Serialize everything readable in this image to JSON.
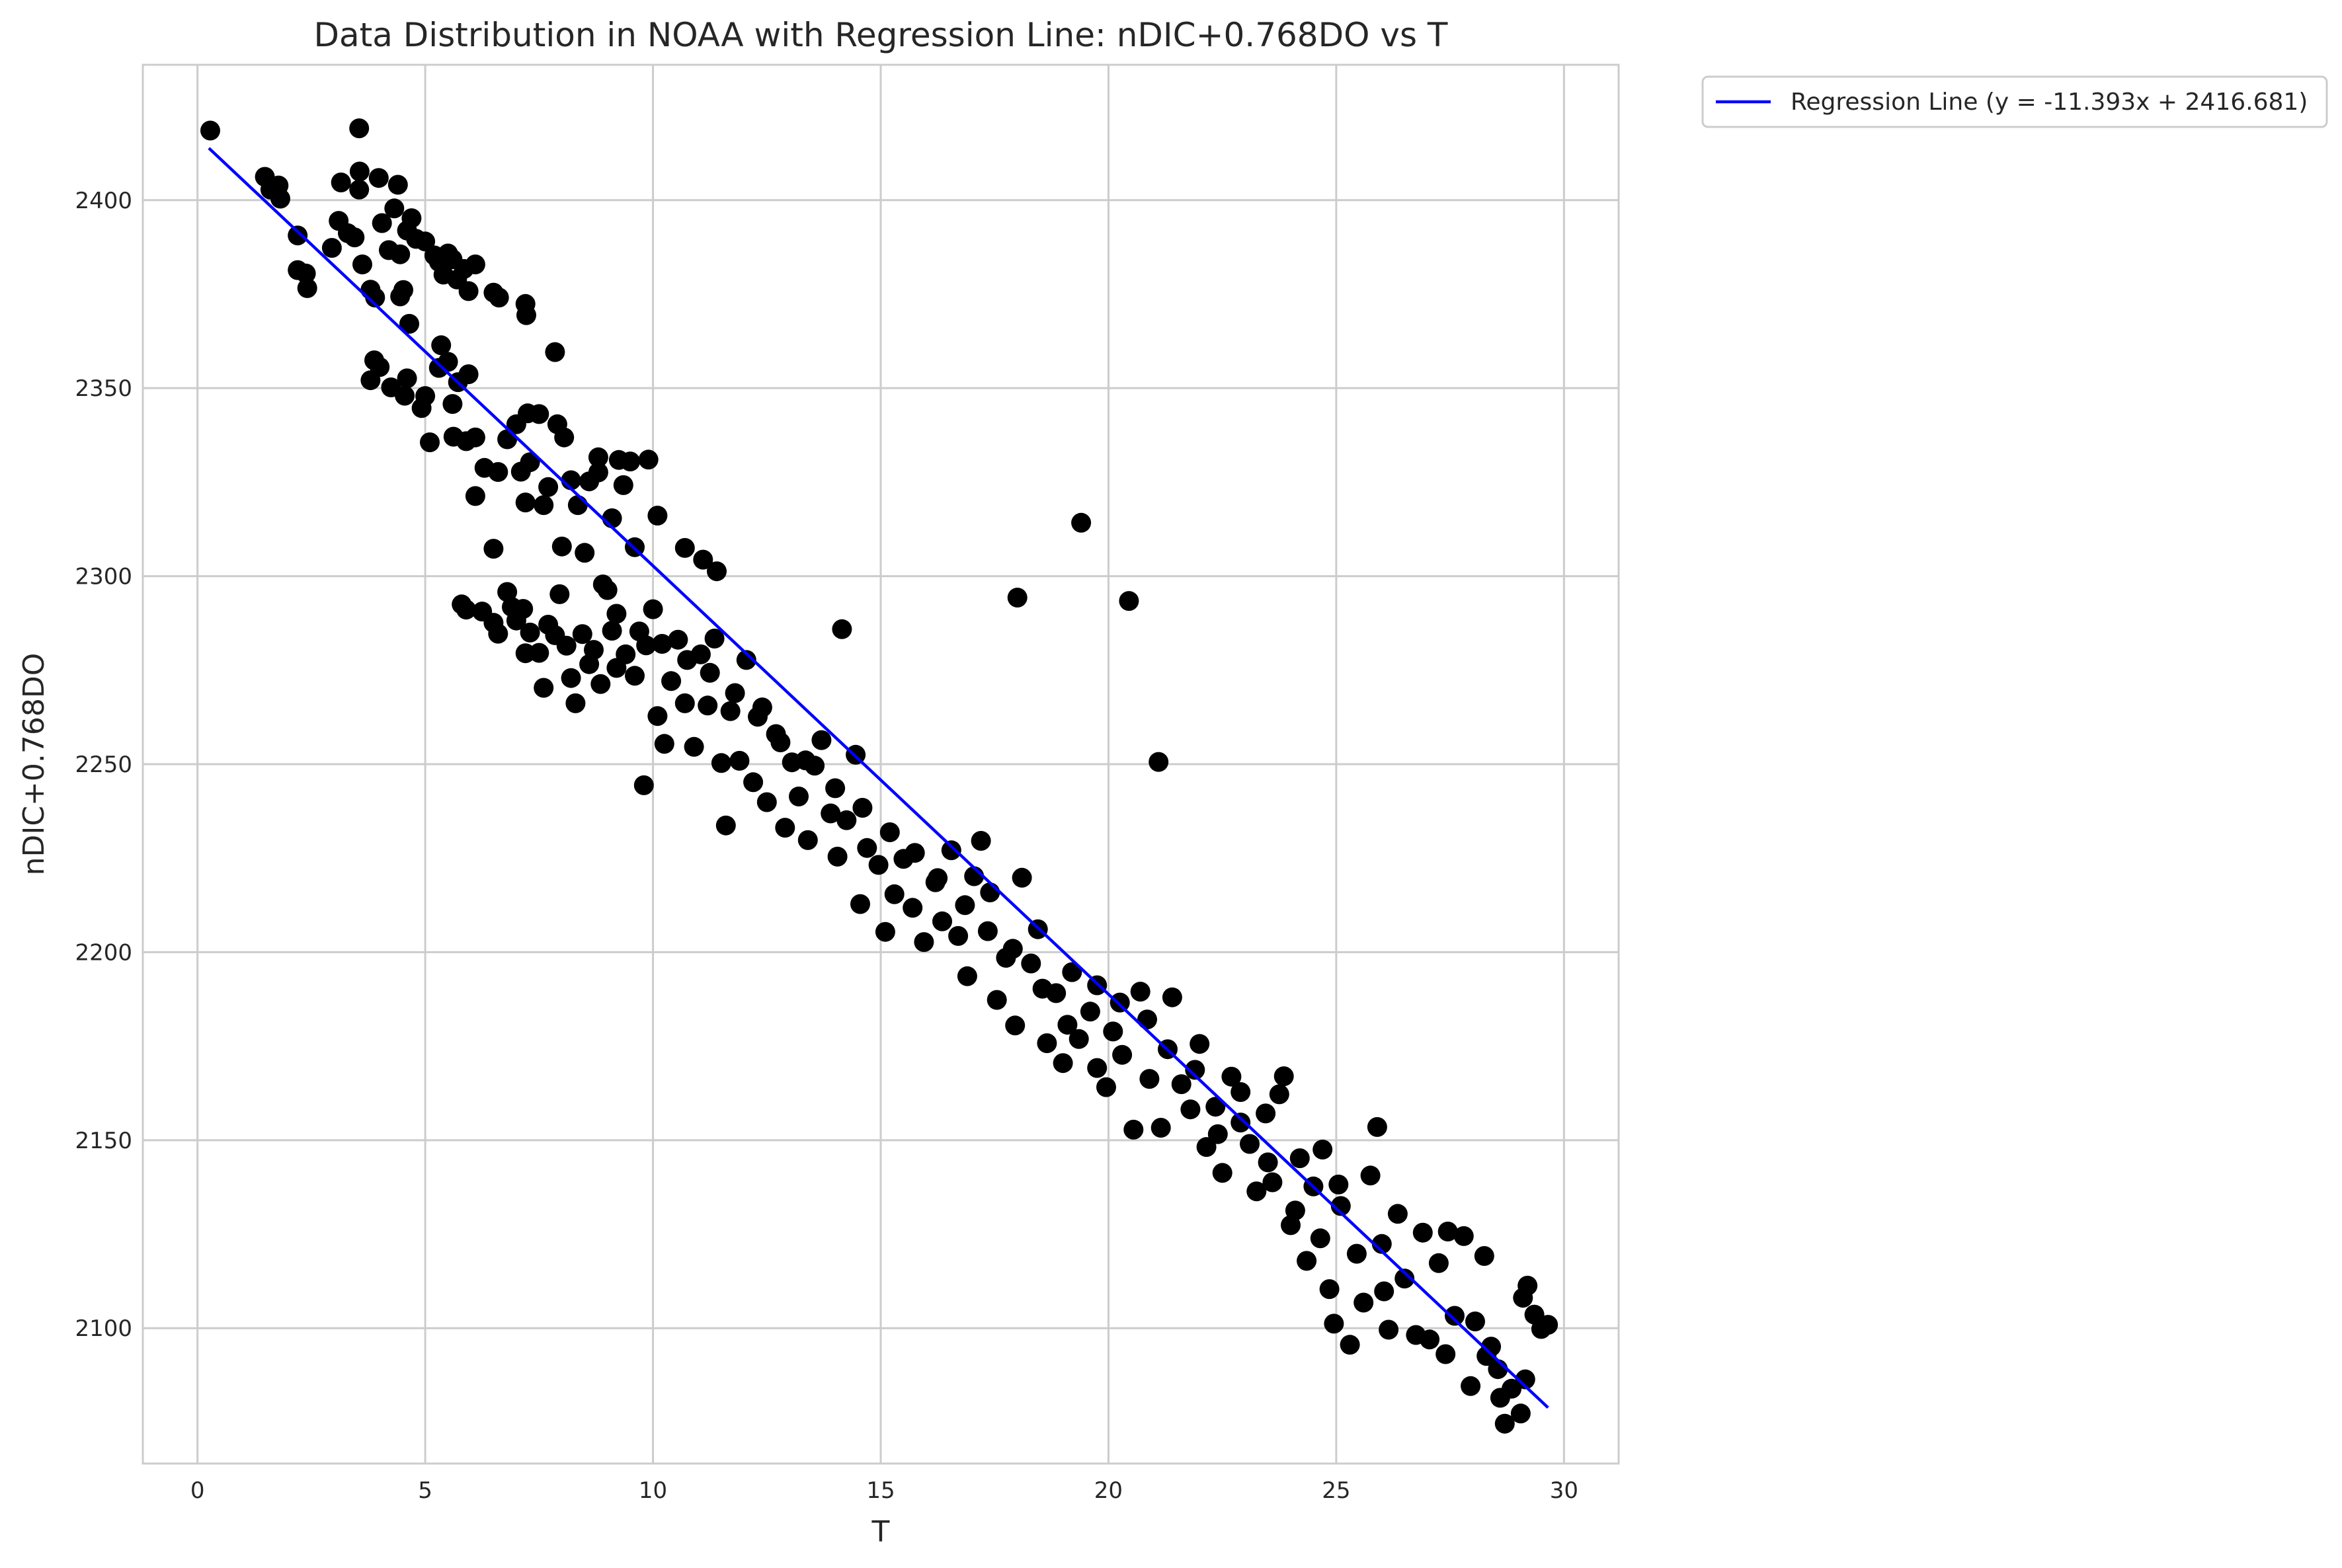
{
  "chart_data": {
    "type": "scatter",
    "title": "Data Distribution in NOAA with Regression Line: nDIC+0.768DO vs T",
    "xlabel": "T",
    "ylabel": "nDIC+0.768DO",
    "xlim": [
      -1.2,
      31.2
    ],
    "ylim": [
      2064,
      2436
    ],
    "xticks": [
      0,
      5,
      10,
      15,
      20,
      25,
      30
    ],
    "yticks": [
      2100,
      2150,
      2200,
      2250,
      2300,
      2350,
      2400
    ],
    "grid": true,
    "legend_placement": "outside top-right",
    "colors": {
      "points": "#000000",
      "regression": "#0000ff",
      "grid": "#cccccc"
    },
    "regression": {
      "label": "Regression Line (y = -11.393x + 2416.681)",
      "slope": -11.393,
      "intercept": 2416.681,
      "x_range": [
        0.25,
        29.65
      ]
    },
    "series": [
      {
        "points": [
          [
            0.28,
            2418.5
          ],
          [
            1.48,
            2406.2
          ],
          [
            1.6,
            2402.8
          ],
          [
            1.78,
            2403.9
          ],
          [
            1.82,
            2400.4
          ],
          [
            2.2,
            2390.6
          ],
          [
            2.2,
            2381.4
          ],
          [
            2.38,
            2380.5
          ],
          [
            2.41,
            2376.6
          ],
          [
            2.95,
            2387.3
          ],
          [
            3.1,
            2394.5
          ],
          [
            3.15,
            2404.7
          ],
          [
            3.3,
            2391.2
          ],
          [
            3.45,
            2390.1
          ],
          [
            3.55,
            2419.1
          ],
          [
            3.56,
            2407.6
          ],
          [
            3.55,
            2402.8
          ],
          [
            3.62,
            2382.9
          ],
          [
            3.8,
            2376.2
          ],
          [
            3.9,
            2374.1
          ],
          [
            3.98,
            2405.9
          ],
          [
            4.05,
            2393.9
          ],
          [
            4.2,
            2386.7
          ],
          [
            4.32,
            2397.8
          ],
          [
            4.4,
            2404.1
          ],
          [
            4.45,
            2385.6
          ],
          [
            4.52,
            2376.1
          ],
          [
            4.45,
            2374.4
          ],
          [
            4.6,
            2391.9
          ],
          [
            4.7,
            2395.2
          ],
          [
            4.8,
            2389.7
          ],
          [
            5.0,
            2389.0
          ],
          [
            5.2,
            2385.3
          ],
          [
            5.3,
            2383.6
          ],
          [
            5.4,
            2380.2
          ],
          [
            5.5,
            2385.8
          ],
          [
            5.6,
            2384.3
          ],
          [
            5.7,
            2378.9
          ],
          [
            5.85,
            2381.7
          ],
          [
            5.95,
            2375.8
          ],
          [
            6.1,
            2382.9
          ],
          [
            6.5,
            2375.4
          ],
          [
            6.62,
            2374.1
          ],
          [
            7.2,
            2372.4
          ],
          [
            7.22,
            2369.4
          ],
          [
            4.65,
            2367.1
          ],
          [
            3.88,
            2357.4
          ],
          [
            4.0,
            2355.6
          ],
          [
            3.8,
            2352.1
          ],
          [
            4.25,
            2350.2
          ],
          [
            4.6,
            2352.6
          ],
          [
            4.55,
            2348.0
          ],
          [
            4.92,
            2344.7
          ],
          [
            5.0,
            2347.9
          ],
          [
            5.1,
            2335.6
          ],
          [
            5.3,
            2355.4
          ],
          [
            5.35,
            2361.4
          ],
          [
            5.5,
            2357.0
          ],
          [
            5.6,
            2345.8
          ],
          [
            5.62,
            2337.1
          ],
          [
            5.72,
            2351.6
          ],
          [
            5.95,
            2353.7
          ],
          [
            5.9,
            2335.9
          ],
          [
            6.1,
            2336.9
          ],
          [
            6.3,
            2328.8
          ],
          [
            6.1,
            2321.3
          ],
          [
            6.6,
            2327.7
          ],
          [
            6.8,
            2336.4
          ],
          [
            7.0,
            2340.4
          ],
          [
            7.1,
            2327.8
          ],
          [
            7.25,
            2343.3
          ],
          [
            7.5,
            2343.1
          ],
          [
            7.3,
            2330.3
          ],
          [
            7.7,
            2323.7
          ],
          [
            7.9,
            2340.4
          ],
          [
            7.85,
            2359.6
          ],
          [
            8.05,
            2336.9
          ],
          [
            8.2,
            2325.5
          ],
          [
            8.35,
            2318.9
          ],
          [
            8.6,
            2325.2
          ],
          [
            8.8,
            2331.6
          ],
          [
            8.8,
            2327.6
          ],
          [
            9.1,
            2315.4
          ],
          [
            9.25,
            2330.9
          ],
          [
            9.35,
            2324.2
          ],
          [
            9.5,
            2330.5
          ],
          [
            9.6,
            2307.7
          ],
          [
            9.9,
            2331.0
          ],
          [
            10.1,
            2316.1
          ],
          [
            10.7,
            2307.5
          ],
          [
            11.1,
            2304.4
          ],
          [
            11.4,
            2301.3
          ],
          [
            7.2,
            2319.6
          ],
          [
            7.6,
            2318.9
          ],
          [
            8.0,
            2307.9
          ],
          [
            8.5,
            2306.2
          ],
          [
            6.5,
            2307.3
          ],
          [
            8.9,
            2297.8
          ],
          [
            9.0,
            2296.3
          ],
          [
            5.8,
            2292.5
          ],
          [
            5.9,
            2291.1
          ],
          [
            6.25,
            2290.6
          ],
          [
            6.5,
            2287.6
          ],
          [
            6.6,
            2284.7
          ],
          [
            6.8,
            2295.8
          ],
          [
            7.0,
            2288.2
          ],
          [
            7.15,
            2291.3
          ],
          [
            7.3,
            2285.0
          ],
          [
            7.5,
            2279.6
          ],
          [
            7.6,
            2270.3
          ],
          [
            7.85,
            2284.3
          ],
          [
            7.95,
            2295.2
          ],
          [
            8.1,
            2281.5
          ],
          [
            8.3,
            2266.2
          ],
          [
            8.45,
            2284.6
          ],
          [
            8.6,
            2276.6
          ],
          [
            8.85,
            2271.3
          ],
          [
            9.1,
            2285.5
          ],
          [
            9.2,
            2290.0
          ],
          [
            9.4,
            2279.2
          ],
          [
            9.6,
            2273.5
          ],
          [
            9.8,
            2244.4
          ],
          [
            9.85,
            2281.6
          ],
          [
            10.0,
            2291.2
          ],
          [
            10.1,
            2262.8
          ],
          [
            10.25,
            2255.4
          ],
          [
            10.4,
            2272.1
          ],
          [
            10.55,
            2283.1
          ],
          [
            10.7,
            2266.2
          ],
          [
            10.9,
            2254.6
          ],
          [
            11.05,
            2279.2
          ],
          [
            11.2,
            2265.6
          ],
          [
            11.35,
            2283.4
          ],
          [
            11.5,
            2250.3
          ],
          [
            11.6,
            2233.7
          ],
          [
            11.7,
            2264.1
          ],
          [
            11.9,
            2250.9
          ],
          [
            12.05,
            2277.7
          ],
          [
            12.2,
            2245.2
          ],
          [
            12.4,
            2265.1
          ],
          [
            12.5,
            2239.9
          ],
          [
            12.7,
            2258.0
          ],
          [
            12.9,
            2233.1
          ],
          [
            13.05,
            2250.5
          ],
          [
            13.2,
            2241.4
          ],
          [
            13.4,
            2229.8
          ],
          [
            13.55,
            2249.6
          ],
          [
            13.7,
            2256.4
          ],
          [
            13.9,
            2236.9
          ],
          [
            14.05,
            2225.4
          ],
          [
            14.15,
            2285.9
          ],
          [
            14.25,
            2235.1
          ],
          [
            14.45,
            2252.5
          ],
          [
            14.55,
            2212.8
          ],
          [
            14.7,
            2227.7
          ],
          [
            14.95,
            2223.2
          ],
          [
            15.1,
            2205.4
          ],
          [
            15.3,
            2215.4
          ],
          [
            15.5,
            2224.8
          ],
          [
            15.7,
            2211.8
          ],
          [
            15.95,
            2202.7
          ],
          [
            16.2,
            2218.6
          ],
          [
            16.35,
            2208.2
          ],
          [
            16.55,
            2227.1
          ],
          [
            16.7,
            2204.3
          ],
          [
            16.9,
            2193.6
          ],
          [
            17.05,
            2220.2
          ],
          [
            17.2,
            2229.6
          ],
          [
            17.4,
            2215.9
          ],
          [
            17.55,
            2187.3
          ],
          [
            17.75,
            2198.5
          ],
          [
            17.95,
            2180.5
          ],
          [
            18.0,
            2294.3
          ],
          [
            18.1,
            2219.8
          ],
          [
            18.3,
            2197.0
          ],
          [
            18.45,
            2206.1
          ],
          [
            18.65,
            2175.8
          ],
          [
            18.85,
            2189.1
          ],
          [
            19.0,
            2170.5
          ],
          [
            19.2,
            2194.7
          ],
          [
            19.35,
            2176.9
          ],
          [
            19.4,
            2314.2
          ],
          [
            19.6,
            2184.2
          ],
          [
            19.75,
            2169.2
          ],
          [
            19.95,
            2164.1
          ],
          [
            20.1,
            2178.9
          ],
          [
            20.3,
            2172.7
          ],
          [
            20.45,
            2293.4
          ],
          [
            20.55,
            2152.8
          ],
          [
            20.7,
            2189.5
          ],
          [
            20.9,
            2166.3
          ],
          [
            21.1,
            2250.6
          ],
          [
            21.15,
            2153.3
          ],
          [
            21.4,
            2188.0
          ],
          [
            21.6,
            2164.9
          ],
          [
            21.8,
            2158.2
          ],
          [
            22.0,
            2175.6
          ],
          [
            22.15,
            2148.2
          ],
          [
            22.35,
            2158.9
          ],
          [
            22.5,
            2141.3
          ],
          [
            22.7,
            2166.9
          ],
          [
            22.9,
            2154.7
          ],
          [
            23.1,
            2149.0
          ],
          [
            23.25,
            2136.4
          ],
          [
            23.45,
            2157.1
          ],
          [
            23.6,
            2138.8
          ],
          [
            23.75,
            2162.2
          ],
          [
            23.85,
            2167.0
          ],
          [
            24.0,
            2127.4
          ],
          [
            24.2,
            2145.2
          ],
          [
            24.35,
            2117.9
          ],
          [
            24.5,
            2137.7
          ],
          [
            24.7,
            2147.5
          ],
          [
            24.85,
            2110.4
          ],
          [
            24.95,
            2101.2
          ],
          [
            25.1,
            2132.5
          ],
          [
            25.3,
            2095.6
          ],
          [
            25.45,
            2119.8
          ],
          [
            25.6,
            2106.8
          ],
          [
            25.75,
            2140.6
          ],
          [
            25.9,
            2153.5
          ],
          [
            26.05,
            2109.8
          ],
          [
            26.15,
            2099.6
          ],
          [
            26.35,
            2130.4
          ],
          [
            26.5,
            2113.2
          ],
          [
            26.75,
            2098.2
          ],
          [
            26.9,
            2125.4
          ],
          [
            27.05,
            2097.0
          ],
          [
            27.25,
            2117.3
          ],
          [
            27.45,
            2125.7
          ],
          [
            27.6,
            2103.3
          ],
          [
            27.8,
            2124.5
          ],
          [
            27.95,
            2084.6
          ],
          [
            28.05,
            2101.8
          ],
          [
            28.25,
            2119.2
          ],
          [
            28.4,
            2095.1
          ],
          [
            28.55,
            2089.1
          ],
          [
            28.7,
            2074.6
          ],
          [
            28.85,
            2083.9
          ],
          [
            29.05,
            2077.3
          ],
          [
            29.1,
            2108.1
          ],
          [
            29.2,
            2111.3
          ],
          [
            29.15,
            2086.4
          ],
          [
            29.35,
            2103.6
          ],
          [
            29.5,
            2099.8
          ],
          [
            29.65,
            2100.9
          ],
          [
            28.3,
            2092.6
          ],
          [
            28.6,
            2081.5
          ],
          [
            27.4,
            2093.1
          ],
          [
            26.0,
            2122.4
          ],
          [
            25.05,
            2138.2
          ],
          [
            24.65,
            2123.9
          ],
          [
            24.1,
            2131.3
          ],
          [
            23.5,
            2144.1
          ],
          [
            22.9,
            2162.8
          ],
          [
            22.4,
            2151.6
          ],
          [
            21.9,
            2168.7
          ],
          [
            21.3,
            2174.2
          ],
          [
            20.85,
            2182.1
          ],
          [
            20.25,
            2186.6
          ],
          [
            19.75,
            2191.2
          ],
          [
            19.1,
            2180.7
          ],
          [
            18.55,
            2190.3
          ],
          [
            17.9,
            2200.9
          ],
          [
            17.35,
            2205.6
          ],
          [
            16.85,
            2212.5
          ],
          [
            16.25,
            2219.7
          ],
          [
            15.75,
            2226.4
          ],
          [
            15.2,
            2231.9
          ],
          [
            14.6,
            2238.4
          ],
          [
            14.0,
            2243.6
          ],
          [
            13.35,
            2251.0
          ],
          [
            12.8,
            2255.8
          ],
          [
            12.3,
            2262.6
          ],
          [
            11.8,
            2268.9
          ],
          [
            11.25,
            2274.3
          ],
          [
            10.75,
            2277.7
          ],
          [
            10.2,
            2282.0
          ],
          [
            9.7,
            2285.3
          ],
          [
            9.2,
            2275.6
          ],
          [
            8.7,
            2280.4
          ],
          [
            8.2,
            2272.9
          ],
          [
            7.7,
            2287.1
          ],
          [
            7.2,
            2279.5
          ],
          [
            6.9,
            2291.8
          ]
        ]
      }
    ]
  }
}
